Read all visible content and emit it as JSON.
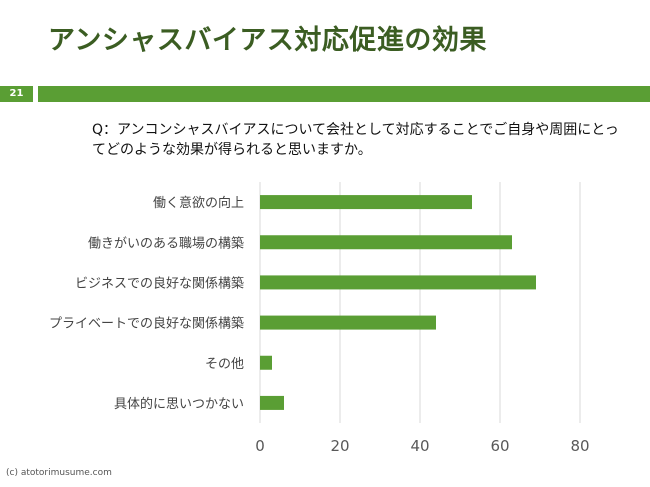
{
  "slide": {
    "title": "アンシャスバイアス対応促進の効果",
    "page_number": "21",
    "question": "Q：アンコンシャスバイアスについて会社として対応することでご自身や周囲にとってどのような効果が得られると思いますか。",
    "copyright": "(c) atotorimusume.com",
    "accent_color": "#5a9e34",
    "title_color": "#3b5d22"
  },
  "chart_data": {
    "type": "bar",
    "orientation": "horizontal",
    "categories": [
      "働く意欲の向上",
      "働きがいのある職場の構築",
      "ビジネスでの良好な関係構築",
      "プライベートでの良好な関係構築",
      "その他",
      "具体的に思いつかない"
    ],
    "values": [
      53,
      63,
      69,
      44,
      3,
      6
    ],
    "xlim": [
      0,
      90
    ],
    "xticks": [
      0,
      20,
      40,
      60,
      80
    ],
    "grid": true,
    "bar_color": "#5a9e34"
  }
}
